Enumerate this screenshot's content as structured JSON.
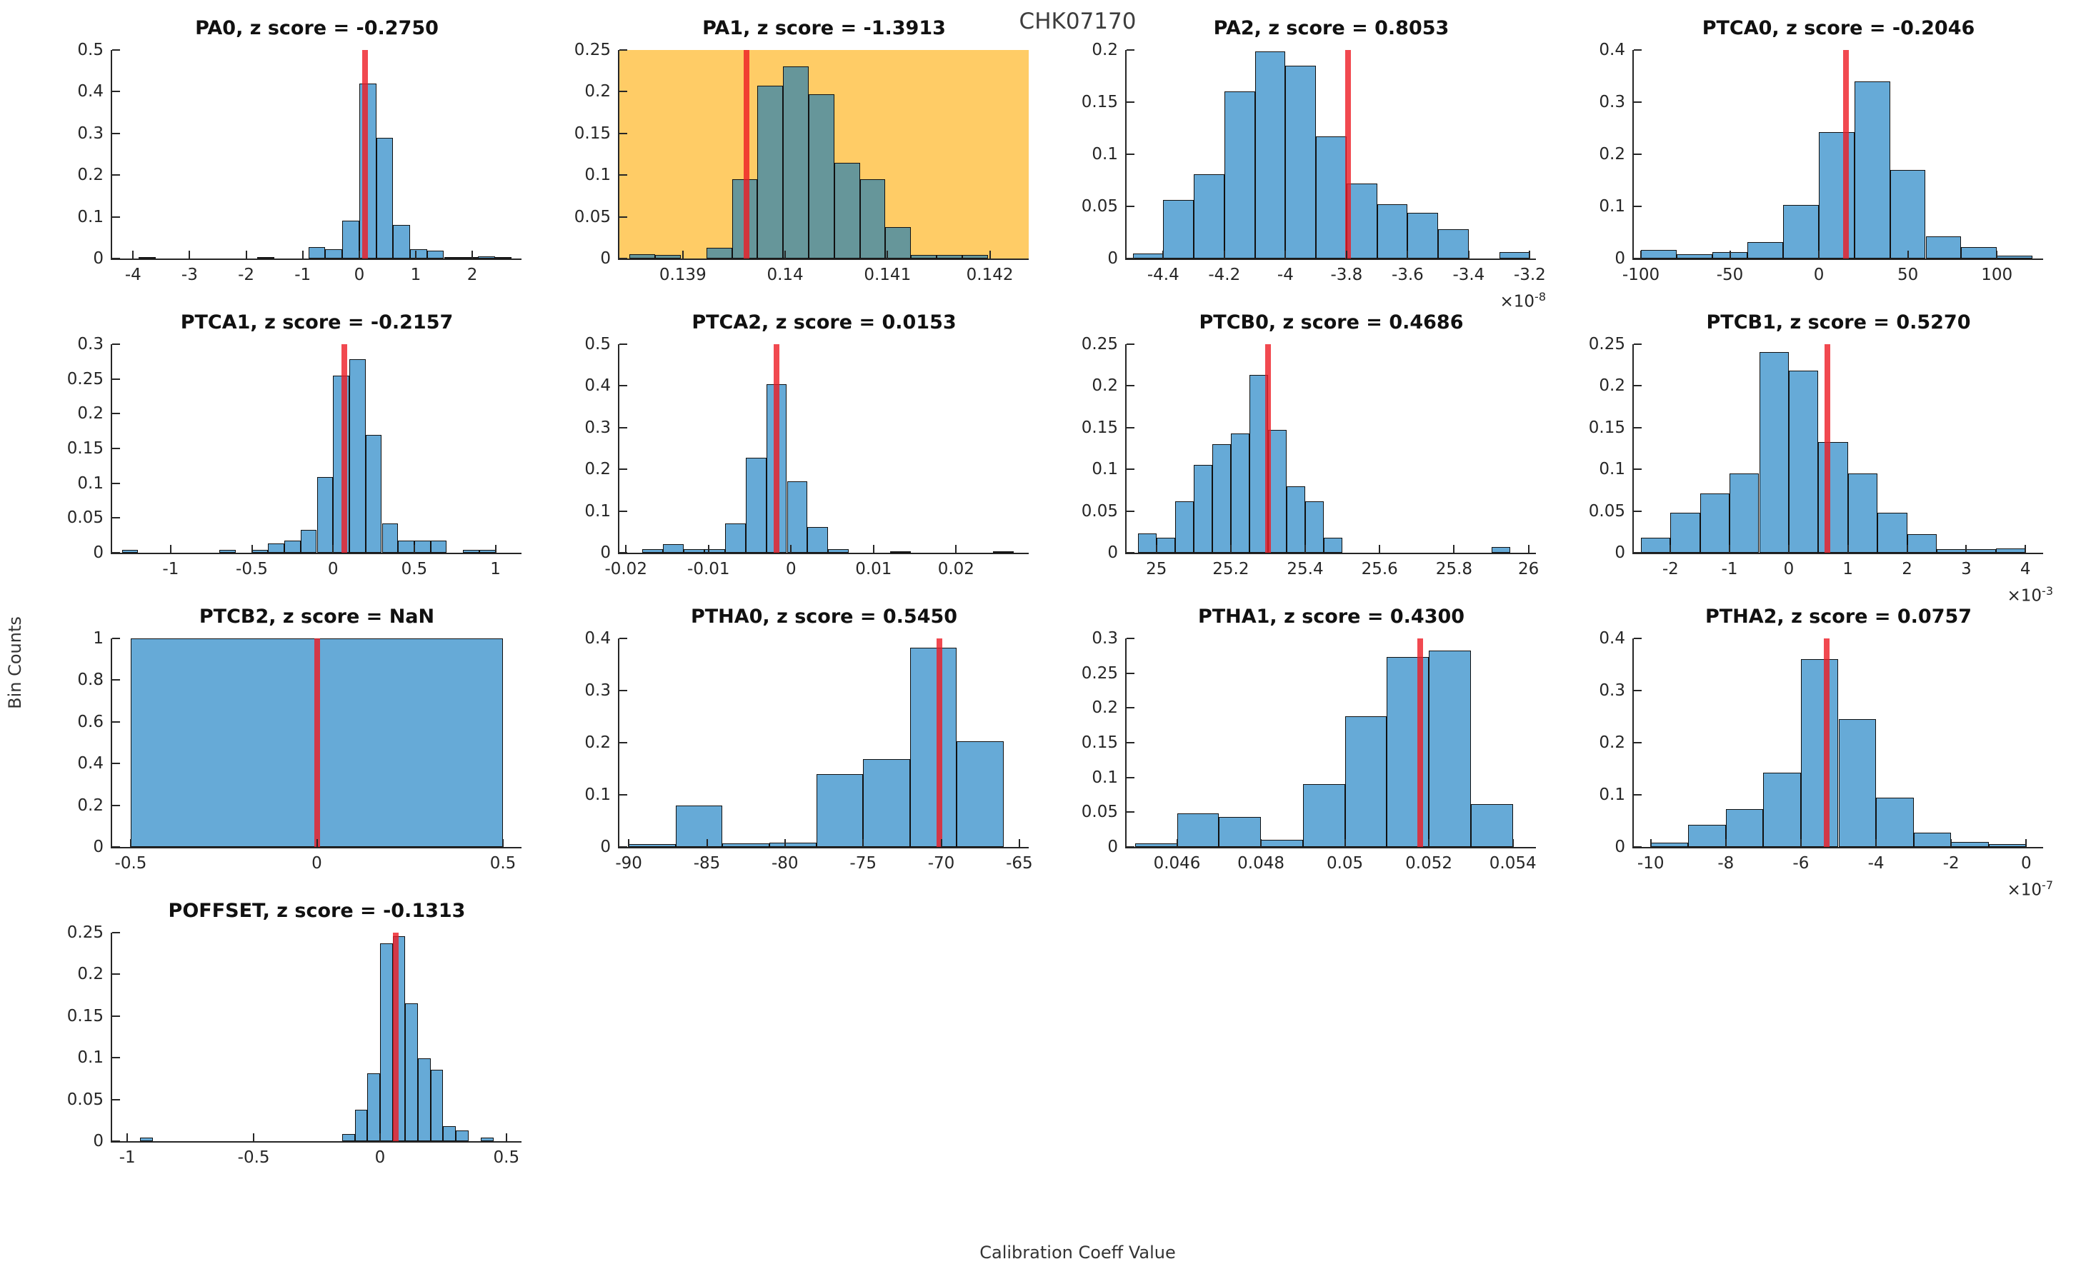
{
  "figure": {
    "title": "CHK07170",
    "xlabel": "Calibration Coeff Value",
    "ylabel": "Bin Counts"
  },
  "colors": {
    "bar_fill": "#0072BD",
    "bar_alpha": 0.6,
    "bar_edge": "#111111",
    "red_line": "#ED1C24",
    "red_alpha": 0.8,
    "highlight_bg": "#FFCC66",
    "axis_color": "#262626"
  },
  "chart_data": [
    {
      "id": "PA0",
      "type": "bar",
      "title": "PA0, z score = -0.2750",
      "row": 0,
      "col": 0,
      "xlim": [
        -4.37,
        2.87
      ],
      "ylim": [
        0,
        0.5
      ],
      "xtick_vals": [
        -4,
        -3,
        -2,
        -1,
        0,
        1,
        2
      ],
      "xtick_labels": [
        "-4",
        "-3",
        "-2",
        "-1",
        "0",
        "1",
        "2"
      ],
      "ytick_vals": [
        0,
        0.1,
        0.2,
        0.3,
        0.4,
        0.5
      ],
      "ytick_labels": [
        "0",
        "0.1",
        "0.2",
        "0.3",
        "0.4",
        "0.5"
      ],
      "bin_width": 0.3,
      "red_x": 0.1,
      "highlight": false,
      "exponent": null,
      "bars": [
        [
          -3.9,
          0.004
        ],
        [
          -1.8,
          0.004
        ],
        [
          -0.9,
          0.027
        ],
        [
          -0.6,
          0.022
        ],
        [
          -0.3,
          0.09
        ],
        [
          0,
          0.42
        ],
        [
          0.3,
          0.29
        ],
        [
          0.6,
          0.08
        ],
        [
          0.9,
          0.022
        ],
        [
          1.2,
          0.019
        ],
        [
          1.5,
          0.004
        ],
        [
          1.8,
          0.004
        ],
        [
          2.1,
          0.005
        ],
        [
          2.4,
          0.004
        ]
      ]
    },
    {
      "id": "PA1",
      "type": "bar",
      "title": "PA1, z score = -1.3913",
      "row": 0,
      "col": 1,
      "xlim": [
        0.13838,
        0.14238
      ],
      "ylim": [
        0,
        0.25
      ],
      "xtick_vals": [
        0.139,
        0.14,
        0.141,
        0.142
      ],
      "xtick_labels": [
        "0.139",
        "0.14",
        "0.141",
        "0.142"
      ],
      "ytick_vals": [
        0,
        0.05,
        0.1,
        0.15,
        0.2,
        0.25
      ],
      "ytick_labels": [
        "0",
        "0.05",
        "0.1",
        "0.15",
        "0.2",
        "0.25"
      ],
      "bin_width": 0.00025,
      "red_x": 0.13962,
      "highlight": true,
      "exponent": null,
      "bars": [
        [
          0.13848,
          0.005
        ],
        [
          0.13873,
          0.004
        ],
        [
          0.13923,
          0.013
        ],
        [
          0.13948,
          0.095
        ],
        [
          0.13973,
          0.207
        ],
        [
          0.13998,
          0.23
        ],
        [
          0.14023,
          0.197
        ],
        [
          0.14048,
          0.115
        ],
        [
          0.14073,
          0.095
        ],
        [
          0.14098,
          0.038
        ],
        [
          0.14123,
          0.004
        ],
        [
          0.14148,
          0.004
        ],
        [
          0.14173,
          0.004
        ]
      ]
    },
    {
      "id": "PA2",
      "type": "bar",
      "title": "PA2, z score = 0.8053",
      "row": 0,
      "col": 2,
      "xlim": [
        -4.52,
        -3.18
      ],
      "ylim": [
        0,
        0.2
      ],
      "xtick_vals": [
        -4.4,
        -4.2,
        -4,
        -3.8,
        -3.6,
        -3.4,
        -3.2
      ],
      "xtick_labels": [
        "-4.4",
        "-4.2",
        "-4",
        "-3.8",
        "-3.6",
        "-3.4",
        "-3.2"
      ],
      "ytick_vals": [
        0,
        0.05,
        0.1,
        0.15,
        0.2
      ],
      "ytick_labels": [
        "0",
        "0.05",
        "0.1",
        "0.15",
        "0.2"
      ],
      "bin_width": 0.1,
      "red_x": -3.795,
      "highlight": false,
      "exponent": "-8",
      "bars": [
        [
          -4.5,
          0.005
        ],
        [
          -4.4,
          0.056
        ],
        [
          -4.3,
          0.081
        ],
        [
          -4.2,
          0.16
        ],
        [
          -4.1,
          0.199
        ],
        [
          -4.0,
          0.185
        ],
        [
          -3.9,
          0.117
        ],
        [
          -3.8,
          0.072
        ],
        [
          -3.7,
          0.052
        ],
        [
          -3.6,
          0.044
        ],
        [
          -3.5,
          0.028
        ],
        [
          -3.3,
          0.006
        ]
      ]
    },
    {
      "id": "PTCA0",
      "type": "bar",
      "title": "PTCA0, z score = -0.2046",
      "row": 0,
      "col": 3,
      "xlim": [
        -104,
        126
      ],
      "ylim": [
        0,
        0.4
      ],
      "xtick_vals": [
        -100,
        -50,
        0,
        50,
        100
      ],
      "xtick_labels": [
        "-100",
        "-50",
        "0",
        "50",
        "100"
      ],
      "ytick_vals": [
        0,
        0.1,
        0.2,
        0.3,
        0.4
      ],
      "ytick_labels": [
        "0",
        "0.1",
        "0.2",
        "0.3",
        "0.4"
      ],
      "bin_width": 20,
      "red_x": 15,
      "highlight": false,
      "exponent": null,
      "bars": [
        [
          -100,
          0.017
        ],
        [
          -80,
          0.008
        ],
        [
          -60,
          0.012
        ],
        [
          -40,
          0.032
        ],
        [
          -20,
          0.103
        ],
        [
          0,
          0.242
        ],
        [
          20,
          0.34
        ],
        [
          40,
          0.17
        ],
        [
          60,
          0.042
        ],
        [
          80,
          0.022
        ],
        [
          100,
          0.005
        ]
      ]
    },
    {
      "id": "PTCA1",
      "type": "bar",
      "title": "PTCA1, z score = -0.2157",
      "row": 1,
      "col": 0,
      "xlim": [
        -1.36,
        1.16
      ],
      "ylim": [
        0,
        0.3
      ],
      "xtick_vals": [
        -1,
        -0.5,
        0,
        0.5,
        1
      ],
      "xtick_labels": [
        "-1",
        "-0.5",
        "0",
        "0.5",
        "1"
      ],
      "ytick_vals": [
        0,
        0.05,
        0.1,
        0.15,
        0.2,
        0.25,
        0.3
      ],
      "ytick_labels": [
        "0",
        "0.05",
        "0.1",
        "0.15",
        "0.2",
        "0.25",
        "0.3"
      ],
      "bin_width": 0.1,
      "red_x": 0.07,
      "highlight": false,
      "exponent": null,
      "bars": [
        [
          -1.3,
          0.004
        ],
        [
          -0.7,
          0.004
        ],
        [
          -0.5,
          0.004
        ],
        [
          -0.4,
          0.013
        ],
        [
          -0.3,
          0.018
        ],
        [
          -0.2,
          0.033
        ],
        [
          -0.1,
          0.109
        ],
        [
          0,
          0.255
        ],
        [
          0.1,
          0.278
        ],
        [
          0.2,
          0.17
        ],
        [
          0.3,
          0.042
        ],
        [
          0.4,
          0.018
        ],
        [
          0.5,
          0.018
        ],
        [
          0.6,
          0.018
        ],
        [
          0.8,
          0.004
        ],
        [
          0.9,
          0.004
        ]
      ]
    },
    {
      "id": "PTCA2",
      "type": "bar",
      "title": "PTCA2, z score = 0.0153",
      "row": 1,
      "col": 1,
      "xlim": [
        -0.0208,
        0.0288
      ],
      "ylim": [
        0,
        0.5
      ],
      "xtick_vals": [
        -0.02,
        -0.01,
        0,
        0.01,
        0.02
      ],
      "xtick_labels": [
        "-0.02",
        "-0.01",
        "0",
        "0.01",
        "0.02"
      ],
      "ytick_vals": [
        0,
        0.1,
        0.2,
        0.3,
        0.4,
        0.5
      ],
      "ytick_labels": [
        "0",
        "0.1",
        "0.2",
        "0.3",
        "0.4",
        "0.5"
      ],
      "bin_width": 0.0025,
      "red_x": -0.0018,
      "highlight": false,
      "exponent": null,
      "bars": [
        [
          -0.018,
          0.008
        ],
        [
          -0.0155,
          0.02
        ],
        [
          -0.013,
          0.008
        ],
        [
          -0.0105,
          0.008
        ],
        [
          -0.008,
          0.07
        ],
        [
          -0.0055,
          0.228
        ],
        [
          -0.003,
          0.405
        ],
        [
          -0.0005,
          0.172
        ],
        [
          0.002,
          0.062
        ],
        [
          0.0045,
          0.008
        ],
        [
          0.012,
          0.004
        ],
        [
          0.0245,
          0.004
        ]
      ]
    },
    {
      "id": "PTCB0",
      "type": "bar",
      "title": "PTCB0, z score = 0.4686",
      "row": 1,
      "col": 2,
      "xlim": [
        24.92,
        26.02
      ],
      "ylim": [
        0,
        0.25
      ],
      "xtick_vals": [
        25,
        25.2,
        25.4,
        25.6,
        25.8,
        26
      ],
      "xtick_labels": [
        "25",
        "25.2",
        "25.4",
        "25.6",
        "25.8",
        "26"
      ],
      "ytick_vals": [
        0,
        0.05,
        0.1,
        0.15,
        0.2,
        0.25
      ],
      "ytick_labels": [
        "0",
        "0.05",
        "0.1",
        "0.15",
        "0.2",
        "0.25"
      ],
      "bin_width": 0.05,
      "red_x": 25.3,
      "highlight": false,
      "exponent": null,
      "bars": [
        [
          24.95,
          0.023
        ],
        [
          25.0,
          0.018
        ],
        [
          25.05,
          0.062
        ],
        [
          25.1,
          0.105
        ],
        [
          25.15,
          0.13
        ],
        [
          25.2,
          0.143
        ],
        [
          25.25,
          0.213
        ],
        [
          25.3,
          0.147
        ],
        [
          25.35,
          0.08
        ],
        [
          25.4,
          0.062
        ],
        [
          25.45,
          0.018
        ],
        [
          25.9,
          0.007
        ]
      ]
    },
    {
      "id": "PTCB1",
      "type": "bar",
      "title": "PTCB1, z score = 0.5270",
      "row": 1,
      "col": 3,
      "xlim": [
        -2.62,
        4.3
      ],
      "ylim": [
        0,
        0.25
      ],
      "xtick_vals": [
        -2,
        -1,
        0,
        1,
        2,
        3,
        4
      ],
      "xtick_labels": [
        "-2",
        "-1",
        "0",
        "1",
        "2",
        "3",
        "4"
      ],
      "ytick_vals": [
        0,
        0.05,
        0.1,
        0.15,
        0.2,
        0.25
      ],
      "ytick_labels": [
        "0",
        "0.05",
        "0.1",
        "0.15",
        "0.2",
        "0.25"
      ],
      "bin_width": 0.5,
      "red_x": 0.65,
      "highlight": false,
      "exponent": "-3",
      "bars": [
        [
          -2.5,
          0.018
        ],
        [
          -2.0,
          0.048
        ],
        [
          -1.5,
          0.071
        ],
        [
          -1.0,
          0.095
        ],
        [
          -0.5,
          0.241
        ],
        [
          0,
          0.218
        ],
        [
          0.5,
          0.133
        ],
        [
          1.0,
          0.095
        ],
        [
          1.5,
          0.048
        ],
        [
          2.0,
          0.022
        ],
        [
          2.5,
          0.004
        ],
        [
          3.0,
          0.004
        ],
        [
          3.5,
          0.005
        ]
      ]
    },
    {
      "id": "PTCB2",
      "type": "bar",
      "title": "PTCB2, z score = NaN",
      "row": 2,
      "col": 0,
      "xlim": [
        -0.55,
        0.55
      ],
      "ylim": [
        0,
        1
      ],
      "xtick_vals": [
        -0.5,
        0,
        0.5
      ],
      "xtick_labels": [
        "-0.5",
        "0",
        "0.5"
      ],
      "ytick_vals": [
        0,
        0.2,
        0.4,
        0.6,
        0.8,
        1
      ],
      "ytick_labels": [
        "0",
        "0.2",
        "0.4",
        "0.6",
        "0.8",
        "1"
      ],
      "bin_width": 1.0,
      "red_x": 0,
      "highlight": false,
      "exponent": null,
      "bars": [
        [
          -0.5,
          1.0
        ]
      ]
    },
    {
      "id": "PTHA0",
      "type": "bar",
      "title": "PTHA0, z score = 0.5450",
      "row": 2,
      "col": 1,
      "xlim": [
        -90.6,
        -64.4
      ],
      "ylim": [
        0,
        0.4
      ],
      "xtick_vals": [
        -90,
        -85,
        -80,
        -75,
        -70,
        -65
      ],
      "xtick_labels": [
        "-90",
        "-85",
        "-80",
        "-75",
        "-70",
        "-65"
      ],
      "ytick_vals": [
        0,
        0.1,
        0.2,
        0.3,
        0.4
      ],
      "ytick_labels": [
        "0",
        "0.1",
        "0.2",
        "0.3",
        "0.4"
      ],
      "bin_width": 3,
      "red_x": -70.1,
      "highlight": false,
      "exponent": null,
      "bars": [
        [
          -90,
          0.005
        ],
        [
          -87,
          0.08
        ],
        [
          -84,
          0.007
        ],
        [
          -81,
          0.008
        ],
        [
          -78,
          0.14
        ],
        [
          -75,
          0.168
        ],
        [
          -72,
          0.382
        ],
        [
          -69,
          0.203
        ]
      ]
    },
    {
      "id": "PTHA1",
      "type": "bar",
      "title": "PTHA1, z score = 0.4300",
      "row": 2,
      "col": 2,
      "xlim": [
        0.0448,
        0.05455
      ],
      "ylim": [
        0,
        0.3
      ],
      "xtick_vals": [
        0.046,
        0.048,
        0.05,
        0.052,
        0.054
      ],
      "xtick_labels": [
        "0.046",
        "0.048",
        "0.05",
        "0.052",
        "0.054"
      ],
      "ytick_vals": [
        0,
        0.05,
        0.1,
        0.15,
        0.2,
        0.25,
        0.3
      ],
      "ytick_labels": [
        "0",
        "0.05",
        "0.1",
        "0.15",
        "0.2",
        "0.25",
        "0.3"
      ],
      "bin_width": 0.001,
      "red_x": 0.0518,
      "highlight": false,
      "exponent": null,
      "bars": [
        [
          0.045,
          0.005
        ],
        [
          0.046,
          0.048
        ],
        [
          0.047,
          0.043
        ],
        [
          0.048,
          0.01
        ],
        [
          0.049,
          0.09
        ],
        [
          0.05,
          0.188
        ],
        [
          0.051,
          0.273
        ],
        [
          0.052,
          0.283
        ],
        [
          0.053,
          0.062
        ]
      ]
    },
    {
      "id": "PTHA2",
      "type": "bar",
      "title": "PTHA2, z score = 0.0757",
      "row": 2,
      "col": 3,
      "xlim": [
        -10.45,
        0.45
      ],
      "ylim": [
        0,
        0.4
      ],
      "xtick_vals": [
        -10,
        -8,
        -6,
        -4,
        -2,
        0
      ],
      "xtick_labels": [
        "-10",
        "-8",
        "-6",
        "-4",
        "-2",
        "0"
      ],
      "ytick_vals": [
        0,
        0.1,
        0.2,
        0.3,
        0.4
      ],
      "ytick_labels": [
        "0",
        "0.1",
        "0.2",
        "0.3",
        "0.4"
      ],
      "bin_width": 1,
      "red_x": -5.32,
      "highlight": false,
      "exponent": "-7",
      "bars": [
        [
          -10,
          0.008
        ],
        [
          -9,
          0.043
        ],
        [
          -8,
          0.072
        ],
        [
          -7,
          0.142
        ],
        [
          -6,
          0.36
        ],
        [
          -5,
          0.245
        ],
        [
          -4,
          0.095
        ],
        [
          -3,
          0.027
        ],
        [
          -2,
          0.01
        ],
        [
          -1,
          0.005
        ]
      ]
    },
    {
      "id": "POFFSET",
      "type": "bar",
      "title": "POFFSET, z score = -0.1313",
      "row": 3,
      "col": 0,
      "xlim": [
        -1.06,
        0.56
      ],
      "ylim": [
        0,
        0.25
      ],
      "xtick_vals": [
        -1,
        -0.5,
        0,
        0.5
      ],
      "xtick_labels": [
        "-1",
        "-0.5",
        "0",
        "0.5"
      ],
      "ytick_vals": [
        0,
        0.05,
        0.1,
        0.15,
        0.2,
        0.25
      ],
      "ytick_labels": [
        "0",
        "0.05",
        "0.1",
        "0.15",
        "0.2",
        "0.25"
      ],
      "bin_width": 0.05,
      "red_x": 0.062,
      "highlight": false,
      "exponent": null,
      "bars": [
        [
          -0.95,
          0.004
        ],
        [
          -0.15,
          0.009
        ],
        [
          -0.1,
          0.038
        ],
        [
          -0.05,
          0.081
        ],
        [
          0,
          0.237
        ],
        [
          0.05,
          0.246
        ],
        [
          0.1,
          0.165
        ],
        [
          0.15,
          0.099
        ],
        [
          0.2,
          0.086
        ],
        [
          0.25,
          0.018
        ],
        [
          0.3,
          0.013
        ],
        [
          0.4,
          0.004
        ]
      ]
    }
  ]
}
